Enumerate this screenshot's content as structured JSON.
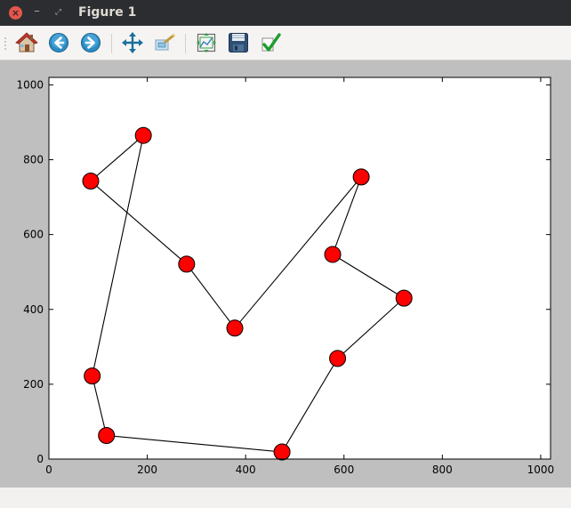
{
  "window": {
    "title": "Figure 1"
  },
  "toolbar": {
    "buttons": [
      {
        "name": "home",
        "icon": "home-icon"
      },
      {
        "name": "back",
        "icon": "back-arrow-icon"
      },
      {
        "name": "forward",
        "icon": "forward-arrow-icon"
      },
      {
        "name": "pan",
        "icon": "pan-move-icon"
      },
      {
        "name": "zoom",
        "icon": "zoom-rectangle-icon"
      },
      {
        "name": "subplots",
        "icon": "configure-subplots-icon"
      },
      {
        "name": "save",
        "icon": "save-floppy-icon"
      },
      {
        "name": "edit",
        "icon": "check-edit-icon"
      }
    ]
  },
  "colors": {
    "marker_fill": "#ff0000",
    "marker_edge": "#000000",
    "line": "#000000",
    "figure_bg": "#bfbfbf",
    "axes_bg": "#ffffff"
  },
  "chart_data": {
    "type": "line",
    "title": "",
    "xlabel": "",
    "ylabel": "",
    "xlim": [
      0,
      1020
    ],
    "ylim": [
      0,
      1020
    ],
    "xticks": [
      0,
      200,
      400,
      600,
      800,
      1000
    ],
    "yticks": [
      0,
      200,
      400,
      600,
      800,
      1000
    ],
    "grid": false,
    "marker": "circle",
    "points": [
      {
        "x": 192,
        "y": 865
      },
      {
        "x": 85,
        "y": 743
      },
      {
        "x": 280,
        "y": 521
      },
      {
        "x": 378,
        "y": 350
      },
      {
        "x": 635,
        "y": 754
      },
      {
        "x": 577,
        "y": 547
      },
      {
        "x": 722,
        "y": 430
      },
      {
        "x": 587,
        "y": 269
      },
      {
        "x": 474,
        "y": 19
      },
      {
        "x": 117,
        "y": 63
      },
      {
        "x": 88,
        "y": 222
      },
      {
        "x": 192,
        "y": 865
      }
    ]
  }
}
